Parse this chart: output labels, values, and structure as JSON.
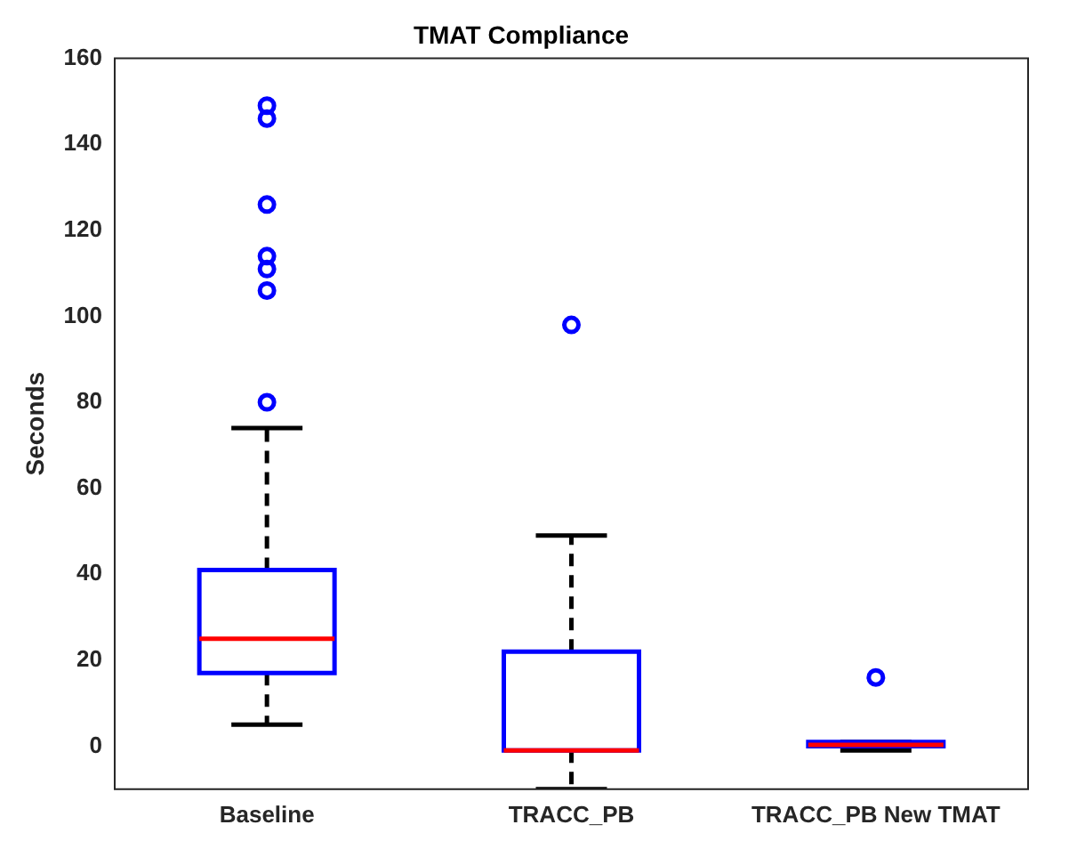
{
  "chart_data": {
    "type": "box",
    "title": "TMAT Compliance",
    "ylabel": "Seconds",
    "categories": [
      "Baseline",
      "TRACC_PB",
      "TRACC_PB New TMAT"
    ],
    "boxes": [
      {
        "low": 5,
        "q1": 17,
        "median": 25,
        "q3": 41,
        "high": 74,
        "outliers": [
          149,
          146,
          126,
          114,
          111,
          106,
          80
        ]
      },
      {
        "low": -10,
        "q1": -1,
        "median": -1,
        "q3": 22,
        "high": 49,
        "outliers": [
          98
        ]
      },
      {
        "low": -1,
        "q1": 0,
        "median": 0.3,
        "q3": 1,
        "high": 1,
        "outliers": [
          16
        ]
      }
    ],
    "color": "#0000ff",
    "ylim": [
      -10,
      160
    ],
    "yticks": [
      0,
      20,
      40,
      60,
      80,
      100,
      120,
      140,
      160
    ],
    "grid": false,
    "marker": "circle"
  }
}
